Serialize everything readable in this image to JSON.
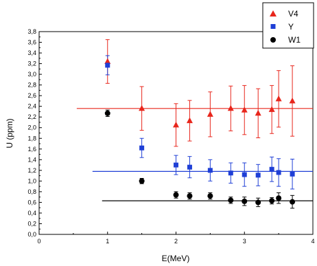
{
  "chart_data": {
    "type": "scatter",
    "title": "",
    "xlabel": "E(MeV)",
    "ylabel": "U (ppm)",
    "xlim": [
      0,
      4
    ],
    "ylim": [
      0,
      3.8
    ],
    "x_ticks": [
      0,
      1,
      2,
      3,
      4
    ],
    "y_ticks": [
      0.0,
      0.2,
      0.4,
      0.6,
      0.8,
      1.0,
      1.2,
      1.4,
      1.6,
      1.8,
      2.0,
      2.2,
      2.4,
      2.6,
      2.8,
      3.0,
      3.2,
      3.4,
      3.6,
      3.8
    ],
    "y_tick_labels": [
      "0,0",
      "0,2",
      "0,4",
      "0,6",
      "0,8",
      "1,0",
      "1,2",
      "1,4",
      "1,6",
      "1,8",
      "2,0",
      "2,2",
      "2,4",
      "2,6",
      "2,8",
      "3,0",
      "3,2",
      "3,4",
      "3,6",
      "3,8"
    ],
    "grid": false,
    "legend_position": "top-right",
    "series": [
      {
        "name": "V4",
        "marker": "triangle",
        "color": "#e8261c",
        "x": [
          1.0,
          1.5,
          2.0,
          2.2,
          2.5,
          2.8,
          3.0,
          3.2,
          3.4,
          3.5,
          3.7
        ],
        "y": [
          3.24,
          2.36,
          2.05,
          2.13,
          2.25,
          2.36,
          2.33,
          2.27,
          2.34,
          2.54,
          2.5
        ],
        "err": [
          0.41,
          0.41,
          0.4,
          0.38,
          0.42,
          0.42,
          0.46,
          0.46,
          0.45,
          0.53,
          0.66
        ],
        "fit_y": 2.36,
        "fit_x": [
          0.55,
          4.0
        ]
      },
      {
        "name": "Y",
        "marker": "square",
        "color": "#1f3fd6",
        "x": [
          1.0,
          1.5,
          2.0,
          2.2,
          2.5,
          2.8,
          3.0,
          3.2,
          3.4,
          3.5,
          3.7
        ],
        "y": [
          3.17,
          1.62,
          1.3,
          1.26,
          1.2,
          1.15,
          1.12,
          1.11,
          1.22,
          1.16,
          1.13
        ],
        "err": [
          0.18,
          0.18,
          0.18,
          0.2,
          0.2,
          0.19,
          0.22,
          0.2,
          0.23,
          0.26,
          0.28
        ],
        "fit_y": 1.18,
        "fit_x": [
          0.78,
          4.0
        ]
      },
      {
        "name": "W1",
        "marker": "circle",
        "color": "#000000",
        "x": [
          1.0,
          1.5,
          2.0,
          2.2,
          2.5,
          2.8,
          3.0,
          3.2,
          3.4,
          3.5,
          3.7
        ],
        "y": [
          2.27,
          1.0,
          0.74,
          0.72,
          0.72,
          0.64,
          0.62,
          0.6,
          0.63,
          0.68,
          0.61
        ],
        "err": [
          0.06,
          0.05,
          0.06,
          0.06,
          0.06,
          0.06,
          0.08,
          0.08,
          0.06,
          0.1,
          0.12
        ],
        "fit_y": 0.63,
        "fit_x": [
          0.92,
          4.0
        ]
      }
    ]
  }
}
